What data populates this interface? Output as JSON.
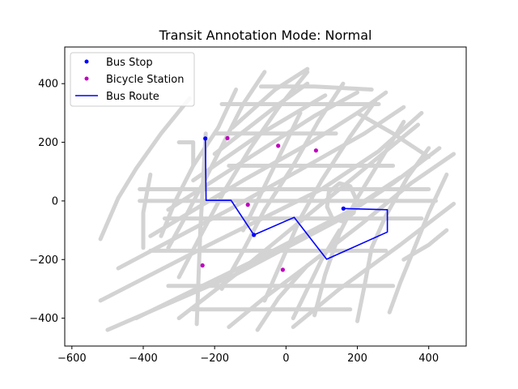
{
  "chart_data": {
    "type": "line",
    "title": "Transit Annotation Mode: Normal",
    "xlabel": "",
    "ylabel": "",
    "xlim": [
      -620,
      505
    ],
    "ylim": [
      -495,
      525
    ],
    "xticks": [
      -600,
      -400,
      -200,
      0,
      200,
      400
    ],
    "yticks": [
      -400,
      -200,
      0,
      200,
      400
    ],
    "xtick_labels": [
      "−600",
      "−400",
      "−200",
      "0",
      "200",
      "400"
    ],
    "ytick_labels": [
      "−400",
      "−200",
      "0",
      "200",
      "400"
    ],
    "grid": false,
    "legend": {
      "placement": "top-left",
      "entries": [
        {
          "label": "Bus Stop",
          "kind": "marker",
          "color": "#0000ff"
        },
        {
          "label": "Bicycle Station",
          "kind": "marker",
          "color": "#bf00bf"
        },
        {
          "label": "Bus Route",
          "kind": "line",
          "color": "#0000ff"
        }
      ]
    },
    "series": [
      {
        "name": "Bus Stop",
        "kind": "scatter",
        "color": "#0000ff",
        "points": [
          [
            -226,
            213
          ],
          [
            -90,
            -116
          ],
          [
            161,
            -26
          ]
        ]
      },
      {
        "name": "Bicycle Station",
        "kind": "scatter",
        "color": "#bf00bf",
        "points": [
          [
            -164,
            214
          ],
          [
            -22,
            188
          ],
          [
            84,
            172
          ],
          [
            -107,
            -13
          ],
          [
            -234,
            -220
          ],
          [
            -9,
            -235
          ]
        ]
      },
      {
        "name": "Bus Route",
        "kind": "line",
        "color": "#0000ff",
        "points": [
          [
            -226,
            213
          ],
          [
            -224,
            2
          ],
          [
            -154,
            2
          ],
          [
            -90,
            -116
          ],
          [
            23,
            -56
          ],
          [
            114,
            -199
          ],
          [
            284,
            -106
          ],
          [
            284,
            -30
          ],
          [
            161,
            -26
          ]
        ]
      }
    ],
    "background_streets": {
      "color": "#d3d3d3",
      "segments": [
        [
          [
            -500,
            -440
          ],
          [
            -140,
            -250
          ],
          [
            140,
            -70
          ],
          [
            300,
            60
          ],
          [
            430,
            180
          ]
        ],
        [
          [
            -420,
            -400
          ],
          [
            -100,
            -210
          ],
          [
            170,
            -40
          ],
          [
            320,
            80
          ]
        ],
        [
          [
            -520,
            -340
          ],
          [
            -200,
            -140
          ],
          [
            100,
            40
          ],
          [
            260,
            170
          ],
          [
            380,
            300
          ]
        ],
        [
          [
            -470,
            -230
          ],
          [
            -160,
            -30
          ],
          [
            60,
            120
          ],
          [
            220,
            230
          ],
          [
            330,
            320
          ]
        ],
        [
          [
            -380,
            -120
          ],
          [
            -120,
            70
          ],
          [
            70,
            200
          ],
          [
            200,
            300
          ],
          [
            280,
            370
          ]
        ],
        [
          [
            -330,
            -30
          ],
          [
            -100,
            150
          ],
          [
            80,
            290
          ],
          [
            200,
            370
          ]
        ],
        [
          [
            -260,
            70
          ],
          [
            -70,
            230
          ],
          [
            110,
            360
          ]
        ],
        [
          [
            -200,
            160
          ],
          [
            -20,
            330
          ],
          [
            60,
            400
          ]
        ],
        [
          [
            -150,
            250
          ],
          [
            -30,
            380
          ],
          [
            60,
            450
          ]
        ],
        [
          [
            -300,
            -400
          ],
          [
            -140,
            -250
          ],
          [
            -20,
            -130
          ],
          [
            130,
            20
          ],
          [
            270,
            160
          ],
          [
            370,
            260
          ]
        ],
        [
          [
            -160,
            -430
          ],
          [
            -60,
            -330
          ],
          [
            50,
            -230
          ],
          [
            210,
            -80
          ],
          [
            350,
            60
          ],
          [
            470,
            160
          ]
        ],
        [
          [
            20,
            -430
          ],
          [
            150,
            -300
          ],
          [
            320,
            -150
          ],
          [
            470,
            -10
          ]
        ],
        [
          [
            -250,
            -420
          ],
          [
            -240,
            -100
          ],
          [
            -225,
            230
          ]
        ],
        [
          [
            -270,
            350
          ],
          [
            -350,
            230
          ],
          [
            -420,
            110
          ],
          [
            -470,
            10
          ],
          [
            -520,
            -130
          ]
        ],
        [
          [
            -140,
            380
          ],
          [
            -190,
            250
          ],
          [
            -260,
            120
          ],
          [
            -310,
            0
          ],
          [
            -350,
            -120
          ]
        ],
        [
          [
            -60,
            440
          ],
          [
            -120,
            330
          ],
          [
            -170,
            210
          ],
          [
            -220,
            90
          ],
          [
            -280,
            -50
          ],
          [
            -330,
            -160
          ]
        ],
        [
          [
            60,
            440
          ],
          [
            -20,
            320
          ],
          [
            -100,
            180
          ],
          [
            -170,
            40
          ],
          [
            -240,
            -120
          ],
          [
            -300,
            -260
          ]
        ],
        [
          [
            160,
            400
          ],
          [
            90,
            270
          ],
          [
            20,
            120
          ],
          [
            -60,
            -30
          ],
          [
            -120,
            -170
          ],
          [
            -180,
            -300
          ]
        ],
        [
          [
            250,
            340
          ],
          [
            180,
            220
          ],
          [
            100,
            70
          ],
          [
            40,
            -60
          ],
          [
            -10,
            -200
          ],
          [
            -60,
            -340
          ]
        ],
        [
          [
            330,
            270
          ],
          [
            270,
            150
          ],
          [
            200,
            10
          ],
          [
            150,
            -110
          ],
          [
            110,
            -250
          ],
          [
            80,
            -390
          ]
        ],
        [
          [
            400,
            180
          ],
          [
            340,
            80
          ],
          [
            280,
            -50
          ],
          [
            240,
            -160
          ],
          [
            220,
            -290
          ],
          [
            200,
            -410
          ]
        ],
        [
          [
            450,
            90
          ],
          [
            400,
            -40
          ],
          [
            360,
            -160
          ],
          [
            320,
            -280
          ],
          [
            290,
            -380
          ]
        ],
        [
          [
            -410,
            0
          ],
          [
            -200,
            0
          ],
          [
            120,
            0
          ],
          [
            300,
            0
          ],
          [
            420,
            0
          ]
        ],
        [
          [
            -410,
            40
          ],
          [
            -150,
            40
          ],
          [
            80,
            40
          ],
          [
            400,
            40
          ]
        ],
        [
          [
            -200,
            230
          ],
          [
            -80,
            230
          ],
          [
            40,
            230
          ],
          [
            140,
            230
          ]
        ],
        [
          [
            -180,
            330
          ],
          [
            -60,
            330
          ],
          [
            120,
            330
          ],
          [
            260,
            330
          ]
        ],
        [
          [
            -340,
            -60
          ],
          [
            -180,
            -60
          ],
          [
            0,
            -60
          ],
          [
            200,
            -60
          ],
          [
            380,
            -60
          ]
        ],
        [
          [
            -380,
            -170
          ],
          [
            -150,
            -170
          ],
          [
            80,
            -170
          ],
          [
            280,
            -170
          ]
        ],
        [
          [
            -330,
            -290
          ],
          [
            -80,
            -290
          ],
          [
            150,
            -290
          ],
          [
            300,
            -290
          ]
        ],
        [
          [
            -260,
            -370
          ],
          [
            -50,
            -370
          ],
          [
            180,
            -370
          ]
        ],
        [
          [
            -160,
            120
          ],
          [
            0,
            120
          ],
          [
            160,
            120
          ],
          [
            300,
            120
          ]
        ],
        [
          [
            -70,
            390
          ],
          [
            80,
            390
          ],
          [
            240,
            380
          ]
        ],
        [
          [
            150,
            60
          ],
          [
            180,
            50
          ],
          [
            195,
            10
          ],
          [
            190,
            -40
          ],
          [
            160,
            -70
          ],
          [
            130,
            -60
          ],
          [
            115,
            -20
          ],
          [
            120,
            30
          ],
          [
            150,
            60
          ]
        ],
        [
          [
            200,
            300
          ],
          [
            300,
            230
          ],
          [
            400,
            150
          ]
        ],
        [
          [
            -400,
            -160
          ],
          [
            -400,
            -40
          ],
          [
            -380,
            90
          ]
        ],
        [
          [
            -120,
            -100
          ],
          [
            -60,
            50
          ],
          [
            0,
            200
          ],
          [
            40,
            300
          ]
        ],
        [
          [
            20,
            -400
          ],
          [
            60,
            -300
          ],
          [
            100,
            -200
          ],
          [
            150,
            -100
          ]
        ],
        [
          [
            -80,
            -440
          ],
          [
            -20,
            -330
          ],
          [
            60,
            -220
          ]
        ],
        [
          [
            330,
            -200
          ],
          [
            400,
            -150
          ],
          [
            450,
            -100
          ]
        ],
        [
          [
            -300,
            200
          ],
          [
            -260,
            200
          ],
          [
            -260,
            120
          ]
        ]
      ]
    }
  }
}
